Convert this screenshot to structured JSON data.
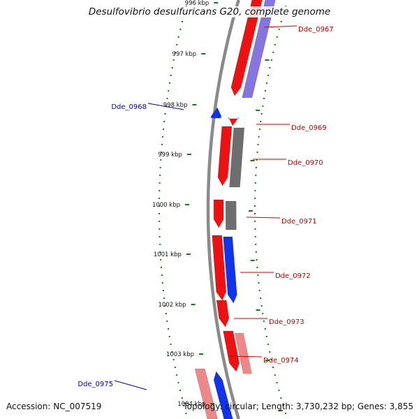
{
  "title": "Desulfovibrio desulfuricans G20, complete genome",
  "footer": {
    "accession": "Accession: NC_007519",
    "topology": "Topology: circular; Length: 3,730,232 bp; Genes: 3,855"
  },
  "colors": {
    "backbone": "#8a8a8a",
    "tick_dot": "#1a7a1a",
    "forward_gene": "#ee1111",
    "reverse_gene": "#1133ee",
    "label_red": "#cc0000",
    "label_blue": "#0000cc",
    "gray_feature": "#6e6e6e",
    "purple_feature": "#7766dd",
    "pink_feature": "#ee8888"
  },
  "ticks": [
    {
      "label": "996 kbp",
      "kbp": 996
    },
    {
      "label": "997 kbp",
      "kbp": 997
    },
    {
      "label": "998 kbp",
      "kbp": 998
    },
    {
      "label": "999 kbp",
      "kbp": 999
    },
    {
      "label": "1000 kbp",
      "kbp": 1000
    },
    {
      "label": "1001 kbp",
      "kbp": 1001
    },
    {
      "label": "1002 kbp",
      "kbp": 1002
    },
    {
      "label": "1003 kbp",
      "kbp": 1003
    },
    {
      "label": "1004 kbp",
      "kbp": 1004
    }
  ],
  "genes": [
    {
      "label": "Dde_0967",
      "strand": "forward",
      "companion": "purple"
    },
    {
      "label": "Dde_0968",
      "strand": "reverse",
      "companion": null
    },
    {
      "label": "Dde_0969",
      "strand": "forward",
      "companion": null
    },
    {
      "label": "Dde_0970",
      "strand": "forward",
      "companion": "gray"
    },
    {
      "label": "Dde_0971",
      "strand": "forward",
      "companion": "gray"
    },
    {
      "label": "Dde_0972",
      "strand": "forward",
      "companion": "blue"
    },
    {
      "label": "Dde_0973",
      "strand": "forward",
      "companion": null
    },
    {
      "label": "Dde_0974",
      "strand": "forward",
      "companion": "pink"
    },
    {
      "label": "Dde_0975",
      "strand": "reverse",
      "companion": "pink"
    }
  ]
}
